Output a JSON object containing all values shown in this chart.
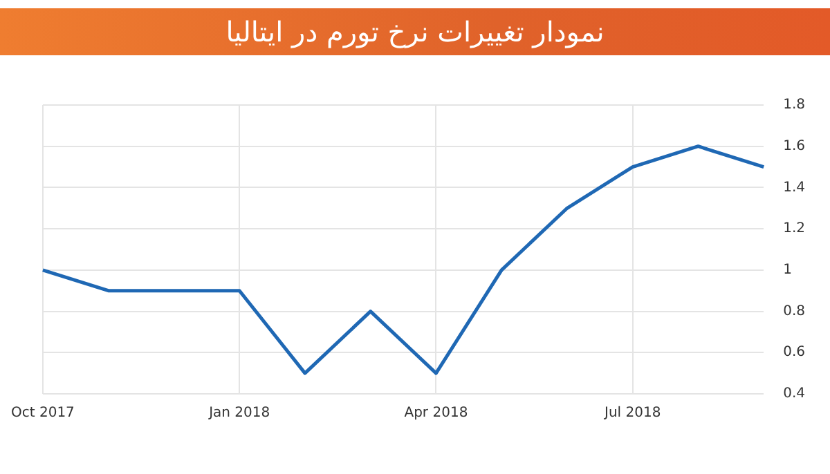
{
  "chart_data": {
    "type": "line",
    "title": "نمودار تغییرات نرخ تورم در ایتالیا",
    "categories": [
      "Oct 2017",
      null,
      null,
      "Jan 2018",
      null,
      null,
      "Apr 2018",
      null,
      null,
      "Jul 2018",
      null,
      null
    ],
    "series": [
      {
        "color": "#1f68b4",
        "values": [
          1.0,
          0.9,
          0.9,
          0.9,
          0.5,
          0.8,
          0.5,
          1.0,
          1.3,
          1.5,
          1.6,
          1.5
        ]
      }
    ],
    "ylim": [
      0.4,
      1.8
    ],
    "yticks": [
      0.4,
      0.6,
      0.8,
      1,
      1.2,
      1.4,
      1.6,
      1.8
    ],
    "grid": true,
    "legend": false,
    "marker": "none",
    "line_style": "solid"
  }
}
